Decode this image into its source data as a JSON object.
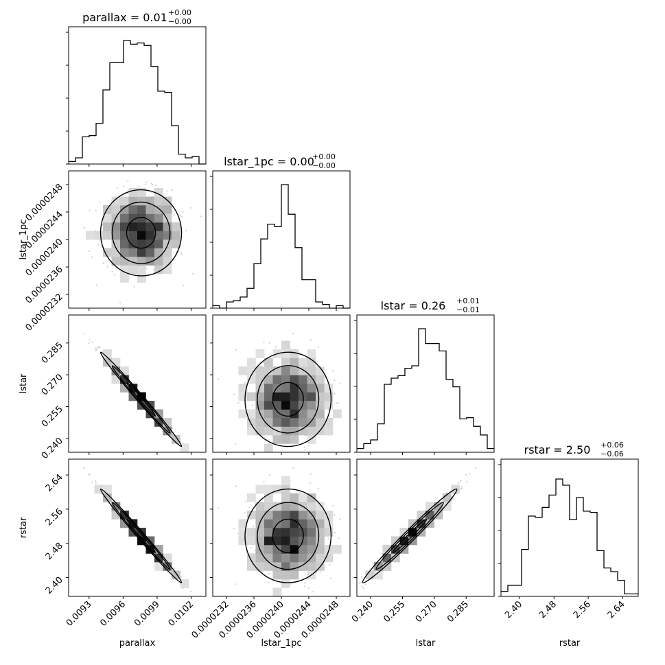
{
  "chart_data": {
    "type": "corner",
    "parameters": [
      "parallax",
      "lstar_1pc",
      "lstar",
      "rstar"
    ],
    "titles": [
      {
        "label": "parallax = 0.01",
        "sup": "+0.00",
        "sub": "−0.00"
      },
      {
        "label": "lstar_1pc = 0.00",
        "sup": "+0.00",
        "sub": "−0.00"
      },
      {
        "label": "lstar = 0.26",
        "sup": "+0.01",
        "sub": "−0.01"
      },
      {
        "label": "rstar = 2.50",
        "sup": "+0.06",
        "sub": "−0.06"
      }
    ],
    "axis_labels": [
      "parallax",
      "lstar_1pc",
      "lstar",
      "rstar"
    ],
    "ranges": [
      [
        0.00912,
        0.01033
      ],
      [
        2.3e-05,
        2.5e-05
      ],
      [
        0.2335,
        0.2982
      ],
      [
        2.356,
        2.677
      ]
    ],
    "ticks": {
      "parallax": [
        "0.0093",
        "0.0096",
        "0.0099",
        "0.0102"
      ],
      "lstar_1pc": [
        "0.0000232",
        "0.0000236",
        "0.0000240",
        "0.0000244",
        "0.0000248"
      ],
      "lstar": [
        "0.240",
        "0.255",
        "0.270",
        "0.285"
      ],
      "rstar": [
        "2.40",
        "2.48",
        "2.56",
        "2.64"
      ]
    },
    "tick_values": {
      "parallax": [
        0.0093,
        0.0096,
        0.0099,
        0.0102
      ],
      "lstar_1pc": [
        2.32e-05,
        2.36e-05,
        2.4e-05,
        2.44e-05,
        2.48e-05
      ],
      "lstar": [
        0.24,
        0.255,
        0.27,
        0.285
      ],
      "rstar": [
        2.4,
        2.48,
        2.56,
        2.64
      ]
    },
    "histograms": [
      [
        2,
        5,
        22,
        23,
        33,
        60,
        82,
        82,
        100,
        97,
        98,
        96,
        79,
        59,
        58,
        31,
        8,
        5,
        6,
        0
      ],
      [
        2,
        0,
        5,
        6,
        9,
        16,
        36,
        56,
        68,
        66,
        100,
        76,
        49,
        23,
        23,
        5,
        3,
        0,
        2,
        0
      ],
      [
        3,
        7,
        10,
        23,
        55,
        60,
        62,
        68,
        70,
        100,
        88,
        88,
        82,
        59,
        53,
        27,
        28,
        21,
        14,
        3
      ],
      [
        4,
        9,
        9,
        38,
        65,
        64,
        72,
        82,
        95,
        90,
        62,
        80,
        69,
        68,
        37,
        23,
        20,
        13,
        2,
        2
      ]
    ],
    "grid": false,
    "legend": "none"
  }
}
